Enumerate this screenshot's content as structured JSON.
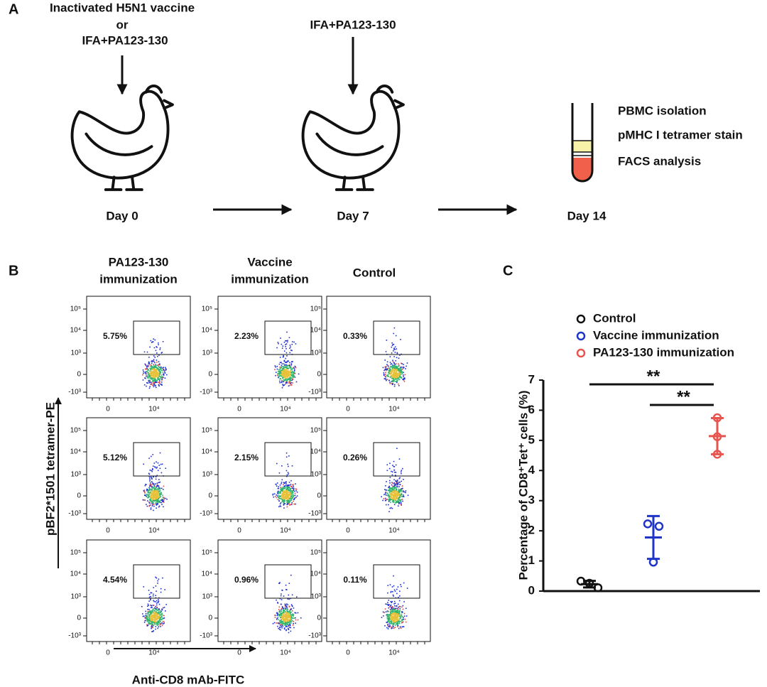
{
  "panel_a": {
    "label": "A",
    "day0_treatment": [
      "Inactivated H5N1 vaccine",
      "or",
      "IFA+PA123-130"
    ],
    "day7_treatment": "IFA+PA123-130",
    "steps": [
      "PBMC isolation",
      "pMHC I tetramer stain",
      "FACS analysis"
    ],
    "days": [
      "Day 0",
      "Day 7",
      "Day 14"
    ]
  },
  "panel_b": {
    "label": "B",
    "columns": [
      [
        "PA123-130",
        "immunization"
      ],
      [
        "Vaccine",
        "immunization"
      ],
      [
        "Control"
      ]
    ],
    "gates": [
      [
        "5.75%",
        "2.23%",
        "0.33%"
      ],
      [
        "5.12%",
        "2.15%",
        "0.26%"
      ],
      [
        "4.54%",
        "0.96%",
        "0.11%"
      ]
    ],
    "y_ticks": [
      "10⁵",
      "10⁴",
      "10³",
      "0",
      "-10³"
    ],
    "x_ticks": [
      "0",
      "10⁴"
    ],
    "y_label": "pBF2*1501 tetramer-PE",
    "x_label": "Anti-CD8 mAb-FITC"
  },
  "chart_data": {
    "type": "scatter",
    "label": "C",
    "ylabel": "Percentage of CD8⁺Tet⁺ cells (%)",
    "ylim": [
      0,
      7
    ],
    "yticks": [
      0,
      1,
      2,
      3,
      4,
      5,
      6,
      7
    ],
    "series": [
      {
        "name": "Control",
        "color": "#111111",
        "values": [
          0.33,
          0.26,
          0.11
        ],
        "mean": 0.23,
        "sd": 0.11
      },
      {
        "name": "Vaccine immunization",
        "color": "#1f35c8",
        "values": [
          2.23,
          2.15,
          0.96
        ],
        "mean": 1.78,
        "sd": 0.71
      },
      {
        "name": "PA123-130 immunization",
        "color": "#e8544e",
        "values": [
          5.75,
          5.12,
          4.54
        ],
        "mean": 5.14,
        "sd": 0.6
      }
    ],
    "annotations": [
      "**",
      "**"
    ]
  }
}
